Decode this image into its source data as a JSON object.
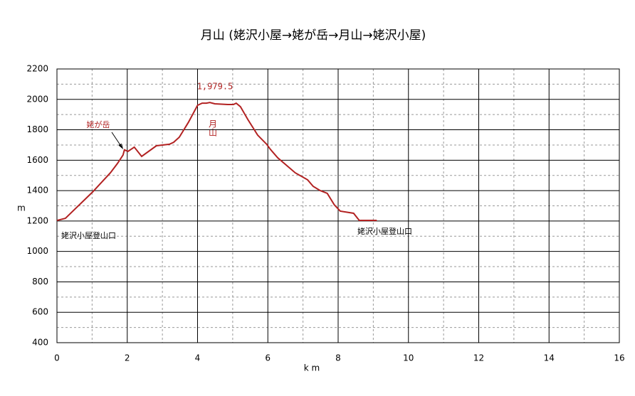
{
  "chart_data": {
    "type": "line",
    "title": "月山 (姥沢小屋→姥が岳→月山→姥沢小屋)",
    "x_label": "k m",
    "y_label": "m",
    "series": [
      {
        "name": "月山",
        "color": "#b22222",
        "x": [
          0,
          0.24,
          0.34,
          1.01,
          1.52,
          1.72,
          1.88,
          1.92,
          2.02,
          2.2,
          2.41,
          2.83,
          3.2,
          3.32,
          3.48,
          3.74,
          4.0,
          4.13,
          4.25,
          4.35,
          4.49,
          4.86,
          5.02,
          5.1,
          5.22,
          5.43,
          5.71,
          5.97,
          6.07,
          6.28,
          6.78,
          7.13,
          7.29,
          7.49,
          7.69,
          7.89,
          8.06,
          8.44,
          8.6,
          9.1
        ],
        "values": [
          1204,
          1218,
          1240,
          1390,
          1517,
          1578,
          1634,
          1668,
          1658,
          1686,
          1625,
          1695,
          1705,
          1718,
          1751,
          1849,
          1961,
          1975,
          1975,
          1979.5,
          1971,
          1966,
          1966,
          1975,
          1952,
          1868,
          1765,
          1704,
          1672,
          1616,
          1517,
          1471,
          1428,
          1400,
          1382,
          1307,
          1265,
          1251,
          1204,
          1204
        ]
      }
    ],
    "xlim": [
      0,
      16
    ],
    "xticks": [
      0,
      2,
      4,
      6,
      8,
      10,
      12,
      14,
      16
    ],
    "xminorticks": [
      1,
      3,
      5,
      7,
      9,
      11,
      13,
      15
    ],
    "ylim": [
      400,
      2200
    ],
    "yticks": [
      400,
      600,
      800,
      1000,
      1200,
      1400,
      1600,
      1800,
      2000,
      2200
    ],
    "yminorticks": [
      500,
      700,
      900,
      1100,
      1300,
      1500,
      1700,
      1900,
      2100
    ],
    "grid": true,
    "annotations": [
      "1,979.5",
      "月山",
      "姥が岳",
      "姥沢小屋登山口",
      "姥沢小屋登山口"
    ]
  }
}
